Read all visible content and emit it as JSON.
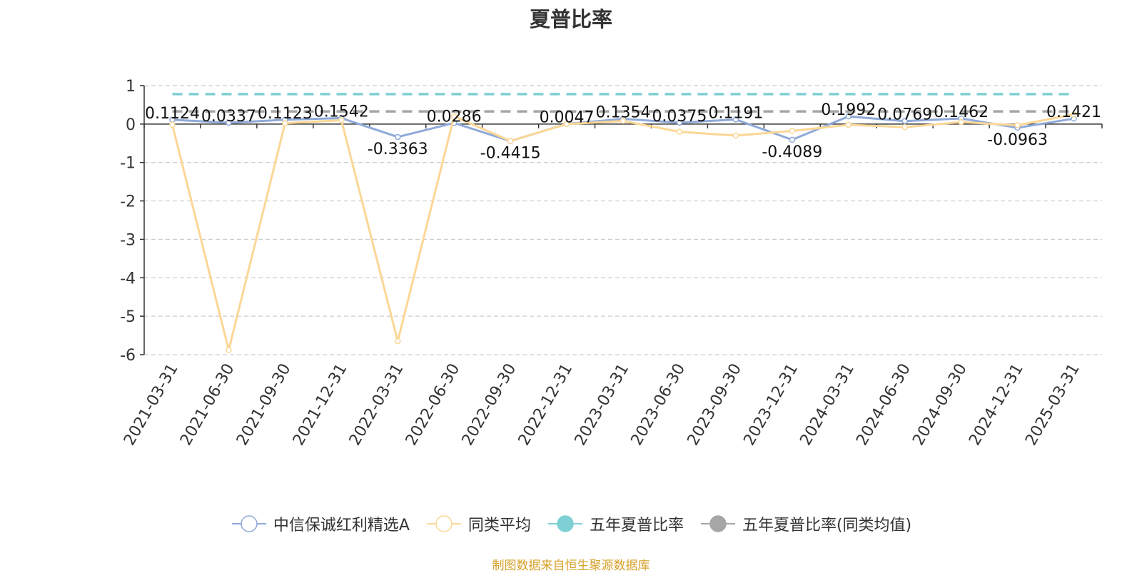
{
  "title": "夏普比率",
  "source_note": "制图数据来自恒生聚源数据库",
  "colors": {
    "fund": "#8fa9d8",
    "peer": "#fbd796",
    "five_year": "#7fd0d4",
    "five_year_peer": "#a6a6a6",
    "grid": "#cccccc",
    "axis": "#333333"
  },
  "chart_data": {
    "type": "line",
    "title": "夏普比率",
    "categories": [
      "2021-03-31",
      "2021-06-30",
      "2021-09-30",
      "2021-12-31",
      "2022-03-31",
      "2022-06-30",
      "2022-09-30",
      "2022-12-31",
      "2023-03-31",
      "2023-06-30",
      "2023-09-30",
      "2023-12-31",
      "2024-03-31",
      "2024-06-30",
      "2024-09-30",
      "2024-12-31",
      "2025-03-31"
    ],
    "ylim": [
      -6,
      1
    ],
    "yticks": [
      "1",
      "0",
      "-1",
      "-2",
      "-3",
      "-4",
      "-5",
      "-6"
    ],
    "grid": true,
    "legend_position": "bottom",
    "series": [
      {
        "name": "中信保诚红利精选A",
        "color": "#8fa9d8",
        "values": [
          0.1124,
          0.0337,
          0.1123,
          0.1542,
          -0.3363,
          0.0286,
          -0.4415,
          0.0047,
          0.1354,
          0.0375,
          0.1191,
          -0.4089,
          0.1992,
          0.0769,
          0.1462,
          -0.0963,
          0.1421
        ],
        "labels": [
          "0.1124",
          "0.0337",
          "0.1123",
          "0.1542",
          "-0.3363",
          "0.0286",
          "-0.4415",
          "0.0047",
          "0.1354",
          "0.0375",
          "0.1191",
          "-0.4089",
          "0.1992",
          "0.0769",
          "0.1462",
          "-0.0963",
          "0.1421"
        ]
      },
      {
        "name": "同类平均",
        "color": "#fbd796",
        "values": [
          -0.02,
          -5.88,
          0.02,
          0.1,
          -5.65,
          0.2,
          -0.44,
          0.0,
          0.08,
          -0.2,
          -0.3,
          -0.18,
          -0.02,
          -0.08,
          0.05,
          -0.03,
          0.25
        ]
      },
      {
        "name": "五年夏普比率",
        "color": "#7fd0d4",
        "constant": 0.78
      },
      {
        "name": "五年夏普比率(同类均值)",
        "color": "#a6a6a6",
        "constant": 0.33
      }
    ]
  },
  "legend": [
    {
      "label": "中信保诚红利精选A",
      "icon": "hollow-circle",
      "color": "#8fa9d8"
    },
    {
      "label": "同类平均",
      "icon": "hollow-circle",
      "color": "#fbd796"
    },
    {
      "label": "五年夏普比率",
      "icon": "filled-circle",
      "color": "#7fd0d4"
    },
    {
      "label": "五年夏普比率(同类均值)",
      "icon": "filled-circle",
      "color": "#a6a6a6"
    }
  ]
}
